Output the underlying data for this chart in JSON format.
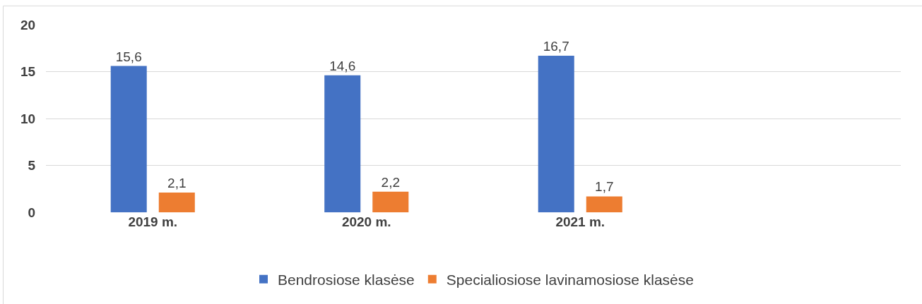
{
  "chart_data": {
    "type": "bar",
    "categories": [
      "2019 m.",
      "2020 m.",
      "2021 m.",
      null
    ],
    "series": [
      {
        "name": "Bendrosiose klasėse",
        "color": "#4472c4",
        "values": [
          15.6,
          14.6,
          16.7,
          null
        ],
        "value_labels": [
          "15,6",
          "14,6",
          "16,7",
          null
        ]
      },
      {
        "name": "Specialiosiose lavinamosiose klasėse",
        "color": "#ed7d31",
        "values": [
          2.1,
          2.2,
          1.7,
          null
        ],
        "value_labels": [
          "2,1",
          "2,2",
          "1,7",
          null
        ]
      }
    ],
    "ylim": [
      0,
      20
    ],
    "yticks": [
      0,
      5,
      10,
      15,
      20
    ],
    "grid": "y",
    "legend": "bottom"
  }
}
